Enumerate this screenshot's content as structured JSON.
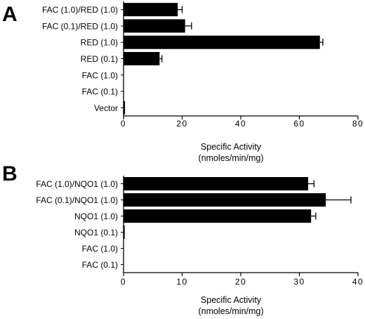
{
  "chart_data": [
    {
      "type": "bar",
      "orientation": "horizontal",
      "panel": "A",
      "categories": [
        "FAC (1.0)/RED (1.0)",
        "FAC (0.1)/RED (1.0)",
        "RED (1.0)",
        "RED (0.1)",
        "FAC (1.0)",
        "FAC (0.1)",
        "Vector"
      ],
      "values": [
        18.5,
        21,
        67,
        12.3,
        0,
        0,
        0.5
      ],
      "errors": [
        1.5,
        2.2,
        1.0,
        0.8,
        0,
        0,
        0
      ],
      "xlabel": "Specific Activity",
      "xlabel_units": "(nmoles/min/mg)",
      "xlim": [
        0,
        80
      ],
      "xticks": [
        0,
        20,
        40,
        60,
        80
      ],
      "grid": false,
      "bar_color": "#000000"
    },
    {
      "type": "bar",
      "orientation": "horizontal",
      "panel": "B",
      "categories": [
        "FAC (1.0)/NQO1 (1.0)",
        "FAC (0.1)/NQO1 (1.0)",
        "NQO1 (1.0)",
        "NQO1 (0.1)",
        "FAC (1.0)",
        "FAC (0.1)"
      ],
      "values": [
        31.5,
        34.5,
        32,
        0.2,
        0,
        0
      ],
      "errors": [
        1.0,
        4.3,
        0.8,
        0,
        0,
        0
      ],
      "xlabel": "Specific Activity",
      "xlabel_units": "(nmoles/min/mg)",
      "xlim": [
        0,
        40
      ],
      "xticks": [
        0,
        10,
        20,
        30,
        40
      ],
      "grid": false,
      "bar_color": "#000000"
    }
  ]
}
